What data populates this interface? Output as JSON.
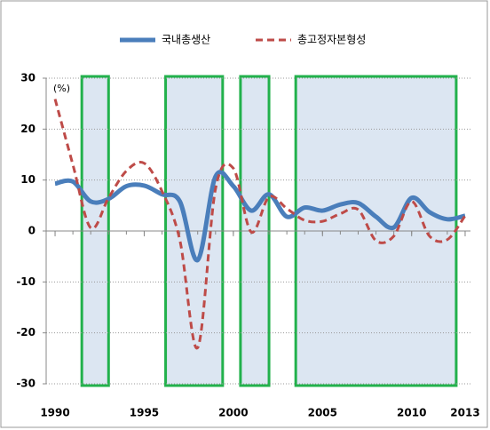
{
  "chart_data": {
    "type": "line",
    "y_label": "(%)",
    "x": [
      1990,
      1991,
      1992,
      1993,
      1994,
      1995,
      1996,
      1997,
      1998,
      1999,
      2000,
      2001,
      2002,
      2003,
      2004,
      2005,
      2006,
      2007,
      2008,
      2009,
      2010,
      2011,
      2012,
      2013
    ],
    "series": [
      {
        "name": "국내총생산",
        "color": "#4a7ebb",
        "style": "solid",
        "values": [
          9.3,
          9.7,
          5.8,
          6.3,
          8.8,
          8.9,
          7.2,
          5.8,
          -5.7,
          10.7,
          8.8,
          4.0,
          7.2,
          2.8,
          4.6,
          4.0,
          5.2,
          5.5,
          2.8,
          0.7,
          6.5,
          3.7,
          2.3,
          3.0
        ]
      },
      {
        "name": "총고정자본형성",
        "color": "#be4b48",
        "style": "dashed",
        "values": [
          25.9,
          13.0,
          0.6,
          6.5,
          11.8,
          13.3,
          7.8,
          -1.8,
          -22.9,
          8.3,
          12.3,
          -0.2,
          6.7,
          4.4,
          2.1,
          1.9,
          3.4,
          4.2,
          -1.9,
          -1.0,
          5.8,
          -1.0,
          -1.7,
          3.0
        ]
      }
    ],
    "highlights": [
      [
        1991.5,
        1993.0
      ],
      [
        1996.2,
        1999.4
      ],
      [
        2000.4,
        2002.0
      ],
      [
        2003.5,
        2012.5
      ]
    ],
    "highlight_fill": "#dce6f2",
    "highlight_stroke": "#22b14c",
    "xlim": [
      1989.5,
      2013.3
    ],
    "xticks": [
      1990,
      1995,
      2000,
      2005,
      2010,
      2013
    ],
    "ylim": [
      -30,
      30
    ],
    "yticks": [
      30,
      20,
      10,
      0,
      -10,
      -20,
      -30
    ],
    "grid": true
  }
}
